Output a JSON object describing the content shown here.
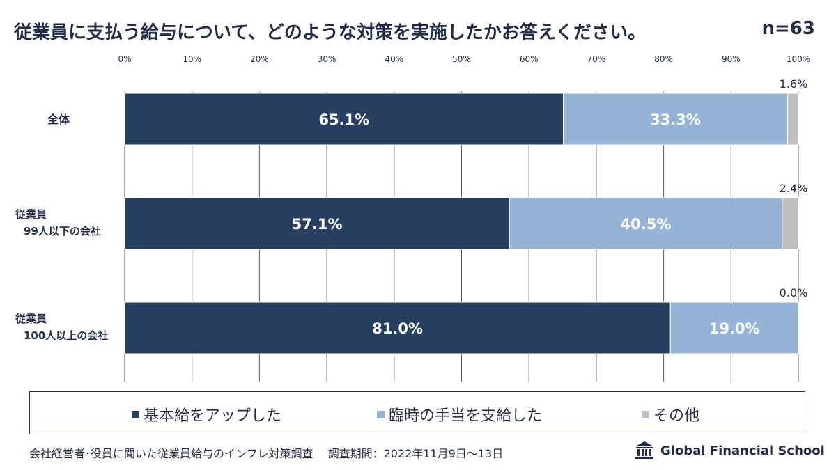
{
  "header": {
    "title": "従業員に支払う給与について、どのような対策を実施したかお答えください。",
    "sample_size": "n=63"
  },
  "chart_data": {
    "type": "bar",
    "orientation": "horizontal",
    "stacked": true,
    "categories": [
      {
        "line1": "全体",
        "line2": ""
      },
      {
        "line1": "従業員",
        "line2": "99人以下の会社"
      },
      {
        "line1": "従業員",
        "line2": "100人以上の会社"
      }
    ],
    "x_ticks": [
      "0%",
      "10%",
      "20%",
      "30%",
      "40%",
      "50%",
      "60%",
      "70%",
      "80%",
      "90%",
      "100%"
    ],
    "xlim": [
      0,
      100
    ],
    "grid": true,
    "series": [
      {
        "name": "基本給をアップした",
        "color": "#263f61",
        "values": [
          65.1,
          57.1,
          81.0
        ],
        "labels": [
          "65.1%",
          "57.1%",
          "81.0%"
        ]
      },
      {
        "name": "臨時の手当を支給した",
        "color": "#95b3d7",
        "values": [
          33.3,
          40.5,
          19.0
        ],
        "labels": [
          "33.3%",
          "40.5%",
          "19.0%"
        ]
      },
      {
        "name": "その他",
        "color": "#bfbfbf",
        "values": [
          1.6,
          2.4,
          0.0
        ],
        "labels": [
          "1.6%",
          "2.4%",
          "0.0%"
        ]
      }
    ],
    "legend_position": "bottom"
  },
  "legend": {
    "items": [
      {
        "label": "基本給をアップした",
        "color": "#263f61"
      },
      {
        "label": "臨時の手当を支給した",
        "color": "#95b3d7"
      },
      {
        "label": "その他",
        "color": "#bfbfbf"
      }
    ]
  },
  "footer": {
    "source": "会社経営者･役員に聞いた従業員給与のインフレ対策調査　 調査期間：2022年11月9日〜13日",
    "brand": "Global Financial School",
    "brand_icon": "school-building-icon"
  }
}
